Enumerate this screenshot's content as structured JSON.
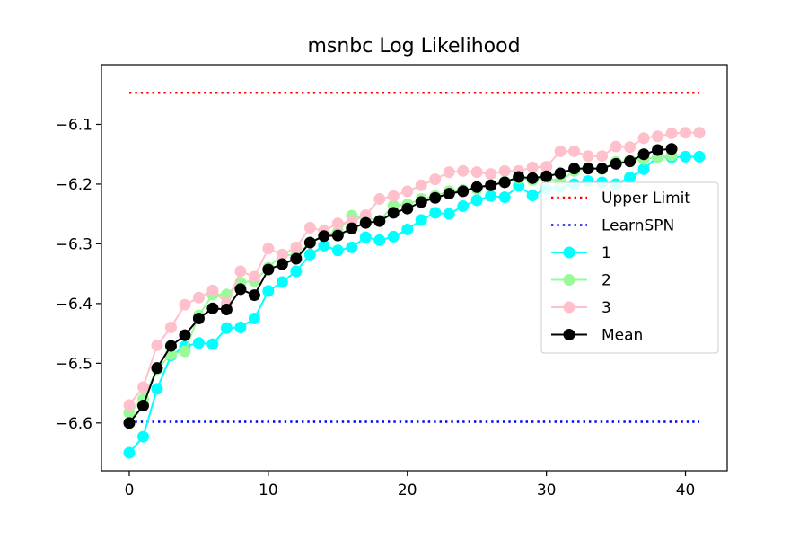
{
  "chart_data": {
    "type": "line",
    "title": "msnbc Log Likelihood",
    "xlabel": "",
    "ylabel": "",
    "xlim": [
      -2,
      43
    ],
    "ylim": [
      -6.68,
      -6.0
    ],
    "xticks": [
      0,
      10,
      20,
      30,
      40
    ],
    "yticks": [
      -6.6,
      -6.5,
      -6.4,
      -6.3,
      -6.2,
      -6.1
    ],
    "ytick_labels": [
      "−6.6",
      "−6.5",
      "−6.4",
      "−6.3",
      "−6.2",
      "−6.1"
    ],
    "grid": false,
    "legend_position": "right",
    "hlines": [
      {
        "name": "Upper Limit",
        "y": -6.047,
        "xrange": [
          0,
          41
        ],
        "color": "#ff0000",
        "style": "dotted"
      },
      {
        "name": "LearnSPN",
        "y": -6.598,
        "xrange": [
          0,
          41
        ],
        "color": "#0000ff",
        "style": "dotted"
      }
    ],
    "series": [
      {
        "name": "1",
        "color": "#00ffff",
        "x": [
          0,
          1,
          2,
          3,
          4,
          5,
          6,
          7,
          8,
          9,
          10,
          11,
          12,
          13,
          14,
          15,
          16,
          17,
          18,
          19,
          20,
          21,
          22,
          23,
          24,
          25,
          26,
          27,
          28,
          29,
          30,
          31,
          32,
          33,
          34,
          35,
          36,
          37,
          38,
          39,
          40,
          41
        ],
        "values": [
          -6.65,
          -6.623,
          -6.543,
          -6.487,
          -6.472,
          -6.466,
          -6.468,
          -6.441,
          -6.44,
          -6.425,
          -6.379,
          -6.364,
          -6.346,
          -6.318,
          -6.303,
          -6.311,
          -6.306,
          -6.289,
          -6.294,
          -6.288,
          -6.276,
          -6.26,
          -6.248,
          -6.25,
          -6.237,
          -6.227,
          -6.22,
          -6.222,
          -6.203,
          -6.219,
          -6.208,
          -6.205,
          -6.2,
          -6.195,
          -6.197,
          -6.2,
          -6.189,
          -6.175,
          -6.154,
          -6.155,
          -6.154,
          -6.154
        ]
      },
      {
        "name": "2",
        "color": "#98fb98",
        "x": [
          0,
          1,
          2,
          3,
          4,
          5,
          6,
          7,
          8,
          9,
          10,
          11,
          12,
          13,
          14,
          15,
          16,
          17,
          18,
          19,
          20,
          21,
          22,
          23,
          24,
          25,
          26,
          27,
          28,
          29,
          30,
          31,
          32,
          33,
          34,
          35,
          36,
          37,
          38,
          39
        ],
        "values": [
          -6.583,
          -6.56,
          -6.51,
          -6.485,
          -6.48,
          -6.42,
          -6.385,
          -6.385,
          -6.365,
          -6.362,
          -6.34,
          -6.318,
          -6.32,
          -6.298,
          -6.285,
          -6.28,
          -6.253,
          -6.257,
          -6.261,
          -6.236,
          -6.234,
          -6.225,
          -6.22,
          -6.212,
          -6.21,
          -6.208,
          -6.202,
          -6.196,
          -6.19,
          -6.193,
          -6.19,
          -6.195,
          -6.178,
          -6.173,
          -6.175,
          -6.163,
          -6.16,
          -6.158,
          -6.155,
          -6.152
        ]
      },
      {
        "name": "3",
        "color": "#ffc0cb",
        "x": [
          0,
          1,
          2,
          3,
          4,
          5,
          6,
          7,
          8,
          9,
          10,
          11,
          12,
          13,
          14,
          15,
          16,
          17,
          18,
          19,
          20,
          21,
          22,
          23,
          24,
          25,
          26,
          27,
          28,
          29,
          30,
          31,
          32,
          33,
          34,
          35,
          36,
          37,
          38,
          39,
          40,
          41
        ],
        "values": [
          -6.57,
          -6.54,
          -6.47,
          -6.44,
          -6.402,
          -6.39,
          -6.378,
          -6.4,
          -6.346,
          -6.355,
          -6.308,
          -6.318,
          -6.306,
          -6.273,
          -6.278,
          -6.266,
          -6.263,
          -6.252,
          -6.225,
          -6.22,
          -6.212,
          -6.202,
          -6.192,
          -6.18,
          -6.178,
          -6.18,
          -6.183,
          -6.178,
          -6.178,
          -6.172,
          -6.171,
          -6.145,
          -6.145,
          -6.153,
          -6.153,
          -6.137,
          -6.138,
          -6.123,
          -6.12,
          -6.115,
          -6.114,
          -6.114
        ]
      },
      {
        "name": "Mean",
        "color": "#000000",
        "x": [
          0,
          1,
          2,
          3,
          4,
          5,
          6,
          7,
          8,
          9,
          10,
          11,
          12,
          13,
          14,
          15,
          16,
          17,
          18,
          19,
          20,
          21,
          22,
          23,
          24,
          25,
          26,
          27,
          28,
          29,
          30,
          31,
          32,
          33,
          34,
          35,
          36,
          37,
          38,
          39
        ],
        "values": [
          -6.6,
          -6.571,
          -6.508,
          -6.471,
          -6.453,
          -6.425,
          -6.408,
          -6.41,
          -6.376,
          -6.386,
          -6.343,
          -6.334,
          -6.325,
          -6.298,
          -6.287,
          -6.286,
          -6.274,
          -6.265,
          -6.262,
          -6.248,
          -6.241,
          -6.23,
          -6.223,
          -6.216,
          -6.212,
          -6.205,
          -6.202,
          -6.197,
          -6.188,
          -6.19,
          -6.187,
          -6.182,
          -6.174,
          -6.174,
          -6.174,
          -6.166,
          -6.162,
          -6.15,
          -6.143,
          -6.141
        ]
      }
    ],
    "legend": [
      {
        "label": "Upper Limit",
        "color": "#ff0000",
        "kind": "dotted"
      },
      {
        "label": "LearnSPN",
        "color": "#0000ff",
        "kind": "dotted"
      },
      {
        "label": "1",
        "color": "#00ffff",
        "kind": "marker-line"
      },
      {
        "label": "2",
        "color": "#98fb98",
        "kind": "marker-line"
      },
      {
        "label": "3",
        "color": "#ffc0cb",
        "kind": "marker-line"
      },
      {
        "label": "Mean",
        "color": "#000000",
        "kind": "marker-line"
      }
    ]
  }
}
